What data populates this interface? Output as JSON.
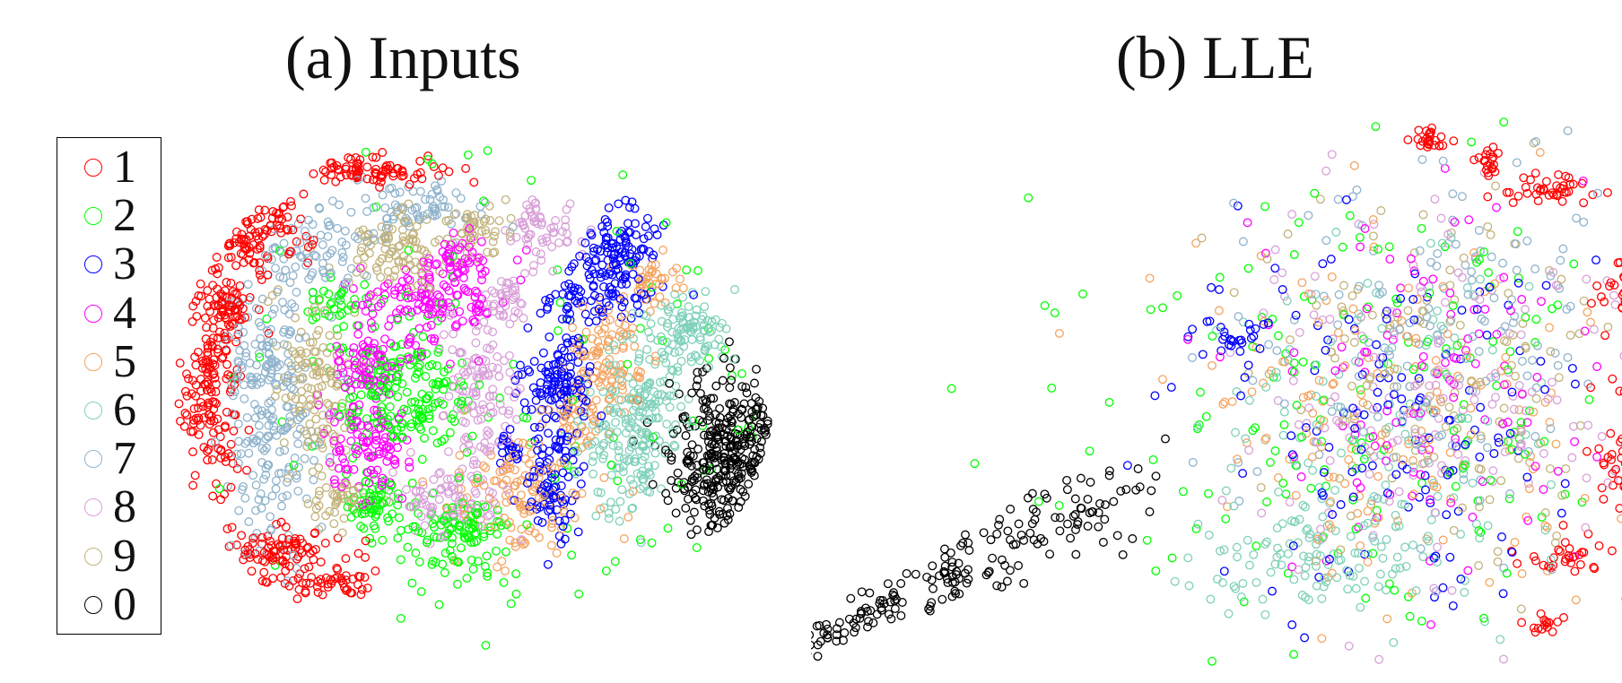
{
  "chart_data": [
    {
      "type": "scatter",
      "title": "(a) Inputs",
      "xlabel": "",
      "ylabel": "",
      "grid": false,
      "legend": "left",
      "series": [
        {
          "name": "1",
          "color": "#ff0000",
          "clusters": [
            [
              -0.88,
              0.03,
              0.05,
              0.2,
              160
            ],
            [
              -0.72,
              0.62,
              0.09,
              0.07,
              90
            ],
            [
              -0.35,
              0.87,
              0.12,
              0.03,
              80
            ],
            [
              -0.68,
              -0.62,
              0.12,
              0.05,
              90
            ],
            [
              -0.48,
              -0.72,
              0.09,
              0.03,
              50
            ],
            [
              -0.83,
              0.36,
              0.05,
              0.06,
              60
            ]
          ]
        },
        {
          "name": "2",
          "color": "#00ff00",
          "clusters": [
            [
              -0.22,
              0.0,
              0.12,
              0.12,
              170
            ],
            [
              -0.05,
              -0.55,
              0.09,
              0.07,
              100
            ],
            [
              -0.32,
              -0.42,
              0.05,
              0.06,
              60
            ],
            [
              -0.45,
              0.33,
              0.06,
              0.05,
              30
            ],
            [
              0.25,
              0.0,
              0.65,
              0.62,
              120
            ]
          ]
        },
        {
          "name": "3",
          "color": "#0000ff",
          "clusters": [
            [
              0.5,
              0.52,
              0.07,
              0.1,
              140
            ],
            [
              0.3,
              0.05,
              0.06,
              0.08,
              120
            ],
            [
              0.28,
              -0.33,
              0.05,
              0.1,
              90
            ],
            [
              0.13,
              -0.22,
              0.02,
              0.04,
              20
            ],
            [
              0.37,
              0.35,
              0.06,
              0.04,
              40
            ]
          ]
        },
        {
          "name": "4",
          "color": "#ff00ff",
          "clusters": [
            [
              -0.35,
              0.1,
              0.07,
              0.07,
              80
            ],
            [
              -0.14,
              0.36,
              0.12,
              0.08,
              130
            ],
            [
              -0.35,
              -0.2,
              0.07,
              0.09,
              100
            ],
            [
              -0.04,
              0.52,
              0.06,
              0.05,
              50
            ]
          ]
        },
        {
          "name": "5",
          "color": "#f4a460",
          "clusters": [
            [
              0.45,
              0.13,
              0.07,
              0.1,
              100
            ],
            [
              0.17,
              -0.38,
              0.11,
              0.13,
              120
            ],
            [
              0.62,
              0.44,
              0.05,
              0.06,
              40
            ],
            [
              0.35,
              -0.1,
              0.05,
              0.06,
              40
            ]
          ]
        },
        {
          "name": "6",
          "color": "#7fd1b9",
          "clusters": [
            [
              0.73,
              0.23,
              0.08,
              0.07,
              100
            ],
            [
              0.53,
              -0.18,
              0.08,
              0.17,
              160
            ],
            [
              0.63,
              -0.02,
              0.06,
              0.08,
              40
            ]
          ]
        },
        {
          "name": "7",
          "color": "#8fb3cc",
          "clusters": [
            [
              -0.67,
              -0.15,
              0.08,
              0.25,
              170
            ],
            [
              -0.52,
              0.55,
              0.1,
              0.08,
              80
            ],
            [
              -0.17,
              0.72,
              0.12,
              0.04,
              70
            ],
            [
              -0.75,
              0.16,
              0.05,
              0.12,
              50
            ]
          ]
        },
        {
          "name": "8",
          "color": "#d8a0d8",
          "clusters": [
            [
              0.02,
              0.01,
              0.07,
              0.17,
              130
            ],
            [
              -0.08,
              -0.4,
              0.09,
              0.07,
              80
            ],
            [
              0.24,
              0.62,
              0.06,
              0.06,
              60
            ],
            [
              0.12,
              0.36,
              0.05,
              0.05,
              40
            ]
          ]
        },
        {
          "name": "9",
          "color": "#c2b27a",
          "clusters": [
            [
              -0.53,
              0.05,
              0.07,
              0.17,
              120
            ],
            [
              -0.25,
              0.55,
              0.08,
              0.07,
              90
            ],
            [
              0.02,
              0.62,
              0.05,
              0.05,
              50
            ],
            [
              -0.45,
              -0.4,
              0.05,
              0.05,
              40
            ]
          ]
        },
        {
          "name": "0",
          "color": "#000000",
          "clusters": [
            [
              0.88,
              -0.25,
              0.11,
              0.16,
              320
            ]
          ]
        }
      ]
    },
    {
      "type": "scatter",
      "title": "(b) LLE",
      "xlabel": "",
      "ylabel": "",
      "grid": false,
      "legend": "none",
      "series": [
        {
          "name": "1",
          "color": "#ff0000",
          "clusters": [
            [
              0.87,
              0.4,
              0.04,
              0.06,
              60
            ],
            [
              0.9,
              0.05,
              0.04,
              0.06,
              40
            ],
            [
              0.87,
              -0.28,
              0.05,
              0.09,
              70
            ],
            [
              0.7,
              -0.6,
              0.05,
              0.03,
              30
            ],
            [
              0.68,
              0.76,
              0.06,
              0.03,
              40
            ],
            [
              0.42,
              0.95,
              0.02,
              0.03,
              25
            ],
            [
              0.55,
              0.86,
              0.02,
              0.03,
              20
            ],
            [
              0.66,
              -0.85,
              0.02,
              0.02,
              15
            ]
          ]
        },
        {
          "name": "2",
          "color": "#00ff00",
          "clusters": [
            [
              0.35,
              0.0,
              0.25,
              0.4,
              120
            ],
            [
              0.0,
              0.0,
              0.3,
              0.4,
              40
            ]
          ]
        },
        {
          "name": "3",
          "color": "#0000ff",
          "clusters": [
            [
              0.3,
              -0.15,
              0.22,
              0.35,
              140
            ],
            [
              0.0,
              0.21,
              0.05,
              0.04,
              25
            ]
          ]
        },
        {
          "name": "4",
          "color": "#ff00ff",
          "clusters": [
            [
              0.4,
              0.05,
              0.2,
              0.33,
              110
            ]
          ]
        },
        {
          "name": "5",
          "color": "#f4a460",
          "clusters": [
            [
              0.35,
              -0.1,
              0.22,
              0.35,
              150
            ]
          ]
        },
        {
          "name": "6",
          "color": "#7fd1b9",
          "clusters": [
            [
              0.2,
              -0.6,
              0.15,
              0.12,
              120
            ],
            [
              0.35,
              -0.1,
              0.22,
              0.35,
              110
            ]
          ]
        },
        {
          "name": "7",
          "color": "#8fb3cc",
          "clusters": [
            [
              0.45,
              0.2,
              0.2,
              0.35,
              150
            ]
          ]
        },
        {
          "name": "8",
          "color": "#d8a0d8",
          "clusters": [
            [
              0.4,
              0.0,
              0.22,
              0.38,
              160
            ]
          ]
        },
        {
          "name": "9",
          "color": "#c2b27a",
          "clusters": [
            [
              0.45,
              0.05,
              0.2,
              0.35,
              150
            ]
          ]
        },
        {
          "name": "0",
          "color": "#000000",
          "line": [
            -0.95,
            -0.95,
            -0.2,
            -0.35
          ],
          "spread": 0.045,
          "count": 190
        }
      ]
    }
  ]
}
